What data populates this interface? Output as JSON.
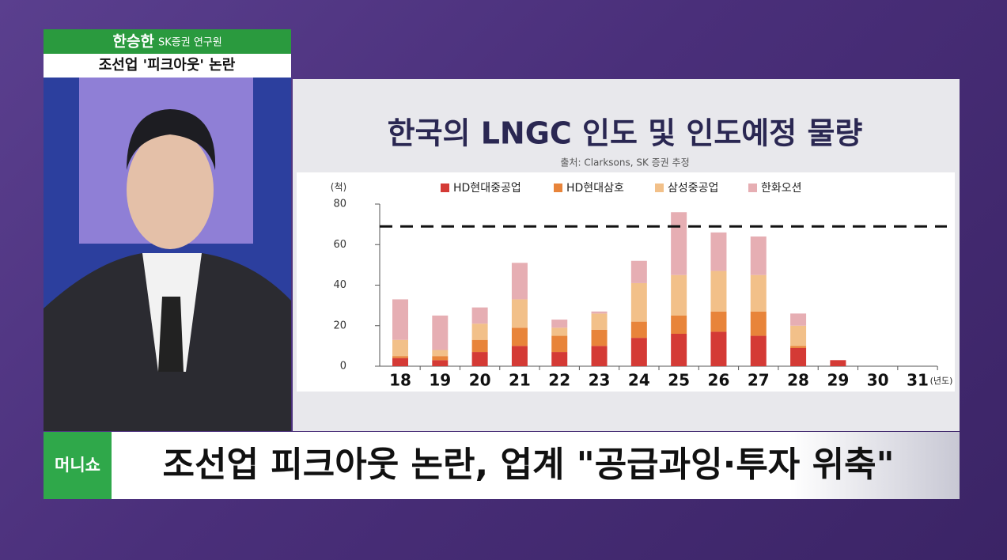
{
  "speaker": {
    "name": "한승한",
    "role": "SK증권 연구원"
  },
  "topic": "조선업 '피크아웃' 논란",
  "channel": "머니쇼",
  "headline": "조선업 피크아웃 논란, 업계 \"공급과잉·투자 위축\"",
  "chart_data": {
    "type": "stacked_bar",
    "title": "한국의 LNGC 인도 및 인도예정 물량",
    "subtitle": "출처: Clarksons, SK 증권 추정",
    "y_label": "(척)",
    "x_label": "(년도)",
    "categories": [
      "18",
      "19",
      "20",
      "21",
      "22",
      "23",
      "24",
      "25",
      "26",
      "27",
      "28",
      "29",
      "30",
      "31"
    ],
    "series": [
      {
        "name": "HD현대중공업",
        "color": "#d43a35",
        "values": [
          4,
          3,
          7,
          10,
          7,
          10,
          14,
          16,
          17,
          15,
          9,
          3,
          0,
          0
        ]
      },
      {
        "name": "HD현대삼호",
        "color": "#e8843a",
        "values": [
          1,
          2,
          6,
          9,
          8,
          8,
          8,
          9,
          10,
          12,
          1,
          0,
          0,
          0
        ]
      },
      {
        "name": "삼성중공업",
        "color": "#f2c089",
        "values": [
          8,
          3,
          8,
          14,
          4,
          8,
          19,
          20,
          20,
          18,
          10,
          0,
          0,
          0
        ]
      },
      {
        "name": "한화오션",
        "color": "#e6aeb3",
        "values": [
          20,
          17,
          8,
          18,
          4,
          1,
          11,
          31,
          19,
          19,
          6,
          0,
          0,
          0
        ]
      }
    ],
    "reference_line": 69,
    "ylim": [
      0,
      80
    ],
    "yticks": [
      0,
      20,
      40,
      60,
      80
    ]
  }
}
